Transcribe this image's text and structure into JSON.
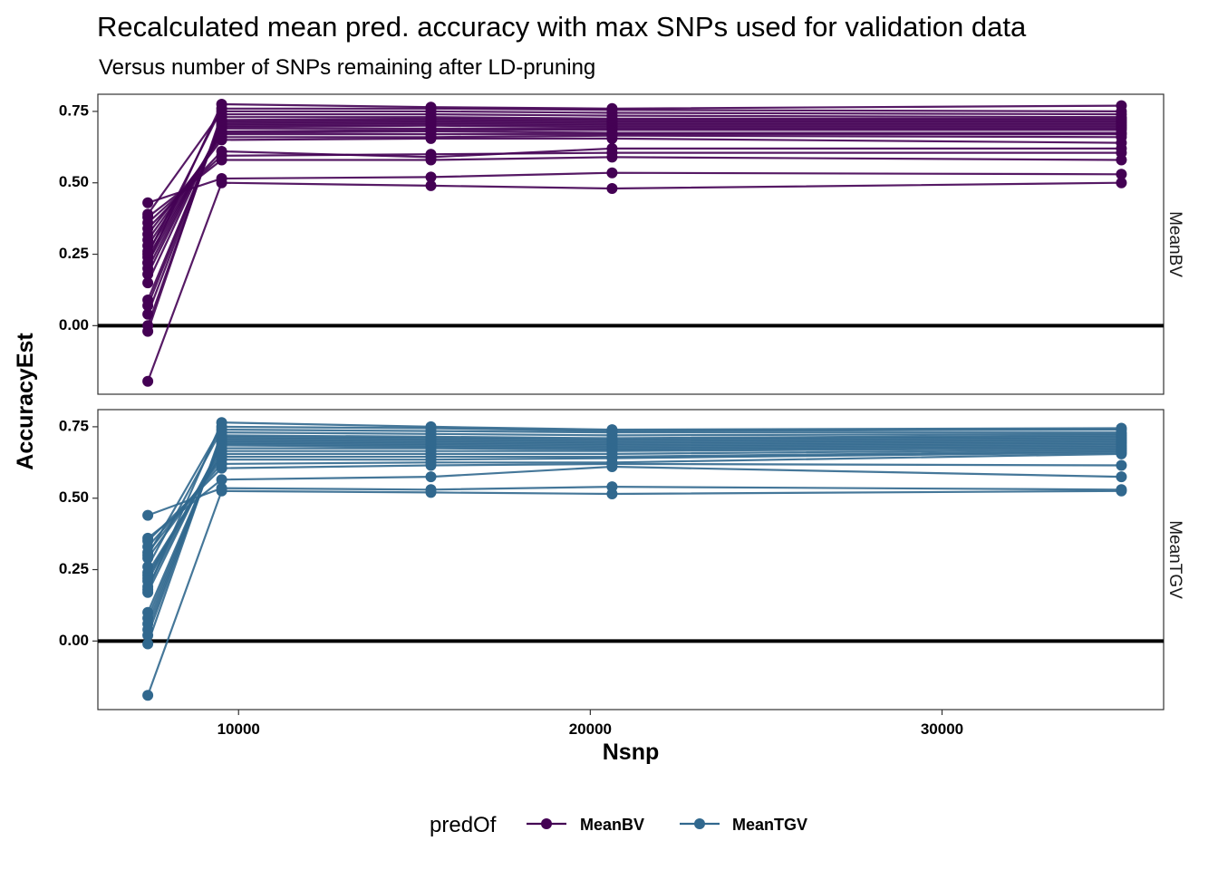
{
  "chart_data": {
    "type": "line",
    "title": "Recalculated mean pred. accuracy with max SNPs used for validation data",
    "subtitle": "Versus number of SNPs remaining after LD-pruning",
    "xlabel": "Nsnp",
    "ylabel": "AccuracyEst",
    "xlim": [
      6000,
      36300
    ],
    "ylim": [
      -0.24,
      0.81
    ],
    "x_ticks": [
      10000,
      20000,
      30000
    ],
    "x_tick_labels": [
      "10000",
      "20000",
      "30000"
    ],
    "y_ticks": [
      0,
      0.25,
      0.5,
      0.75
    ],
    "y_tick_labels": [
      "0.00",
      "0.25",
      "0.50",
      "0.75"
    ],
    "hline": 0,
    "grid": false,
    "legend_position": "bottom",
    "legend_title": "predOf",
    "x": [
      7420,
      9520,
      15470,
      20620,
      35100
    ],
    "facets": [
      {
        "name": "MeanBV",
        "color": "#440154",
        "series": [
          {
            "values": [
              -0.195,
              0.5,
              0.49,
              0.48,
              0.5
            ]
          },
          {
            "values": [
              0.43,
              0.515,
              0.52,
              0.535,
              0.53
            ]
          },
          {
            "values": [
              0.38,
              0.58,
              0.58,
              0.59,
              0.58
            ]
          },
          {
            "values": [
              0.36,
              0.595,
              0.6,
              0.605,
              0.605
            ]
          },
          {
            "values": [
              0.34,
              0.61,
              0.59,
              0.62,
              0.62
            ]
          },
          {
            "values": [
              0.32,
              0.65,
              0.655,
              0.655,
              0.64
            ]
          },
          {
            "values": [
              0.3,
              0.66,
              0.66,
              0.665,
              0.66
            ]
          },
          {
            "values": [
              0.28,
              0.67,
              0.67,
              0.67,
              0.67
            ]
          },
          {
            "values": [
              0.26,
              0.675,
              0.68,
              0.675,
              0.675
            ]
          },
          {
            "values": [
              0.24,
              0.68,
              0.685,
              0.685,
              0.685
            ]
          },
          {
            "values": [
              0.22,
              0.69,
              0.69,
              0.69,
              0.69
            ]
          },
          {
            "values": [
              0.2,
              0.695,
              0.7,
              0.695,
              0.695
            ]
          },
          {
            "values": [
              0.18,
              0.7,
              0.705,
              0.7,
              0.7
            ]
          },
          {
            "values": [
              0.15,
              0.705,
              0.71,
              0.705,
              0.705
            ]
          },
          {
            "values": [
              0.09,
              0.71,
              0.715,
              0.71,
              0.71
            ]
          },
          {
            "values": [
              0.07,
              0.715,
              0.72,
              0.715,
              0.715
            ]
          },
          {
            "values": [
              0.04,
              0.72,
              0.725,
              0.72,
              0.72
            ]
          },
          {
            "values": [
              0.0,
              0.73,
              0.73,
              0.725,
              0.725
            ]
          },
          {
            "values": [
              -0.02,
              0.74,
              0.74,
              0.735,
              0.73
            ]
          },
          {
            "values": [
              0.39,
              0.75,
              0.75,
              0.745,
              0.74
            ]
          },
          {
            "values": [
              0.25,
              0.76,
              0.76,
              0.755,
              0.75
            ]
          },
          {
            "values": [
              0.22,
              0.775,
              0.765,
              0.76,
              0.77
            ]
          }
        ]
      },
      {
        "name": "MeanTGV",
        "color": "#31688E",
        "series": [
          {
            "values": [
              -0.19,
              0.525,
              0.52,
              0.515,
              0.525
            ]
          },
          {
            "values": [
              0.44,
              0.535,
              0.53,
              0.54,
              0.53
            ]
          },
          {
            "values": [
              0.36,
              0.565,
              0.575,
              0.61,
              0.575
            ]
          },
          {
            "values": [
              0.35,
              0.605,
              0.615,
              0.62,
              0.615
            ]
          },
          {
            "values": [
              0.33,
              0.62,
              0.625,
              0.625,
              0.655
            ]
          },
          {
            "values": [
              0.31,
              0.635,
              0.635,
              0.64,
              0.66
            ]
          },
          {
            "values": [
              0.29,
              0.645,
              0.645,
              0.645,
              0.665
            ]
          },
          {
            "values": [
              0.24,
              0.655,
              0.655,
              0.655,
              0.67
            ]
          },
          {
            "values": [
              0.23,
              0.665,
              0.665,
              0.665,
              0.675
            ]
          },
          {
            "values": [
              0.22,
              0.675,
              0.675,
              0.67,
              0.68
            ]
          },
          {
            "values": [
              0.21,
              0.685,
              0.68,
              0.675,
              0.685
            ]
          },
          {
            "values": [
              0.19,
              0.69,
              0.685,
              0.68,
              0.69
            ]
          },
          {
            "values": [
              0.17,
              0.695,
              0.69,
              0.685,
              0.695
            ]
          },
          {
            "values": [
              0.1,
              0.7,
              0.695,
              0.69,
              0.7
            ]
          },
          {
            "values": [
              0.08,
              0.705,
              0.7,
              0.695,
              0.705
            ]
          },
          {
            "values": [
              0.06,
              0.71,
              0.705,
              0.7,
              0.71
            ]
          },
          {
            "values": [
              0.04,
              0.715,
              0.71,
              0.705,
              0.715
            ]
          },
          {
            "values": [
              0.02,
              0.72,
              0.715,
              0.71,
              0.72
            ]
          },
          {
            "values": [
              -0.01,
              0.73,
              0.725,
              0.72,
              0.725
            ]
          },
          {
            "values": [
              0.26,
              0.74,
              0.735,
              0.73,
              0.73
            ]
          },
          {
            "values": [
              0.3,
              0.75,
              0.745,
              0.735,
              0.74
            ]
          },
          {
            "values": [
              0.18,
              0.765,
              0.75,
              0.74,
              0.745
            ]
          }
        ]
      }
    ],
    "legend": [
      {
        "label": "MeanBV",
        "color": "#440154"
      },
      {
        "label": "MeanTGV",
        "color": "#31688E"
      }
    ]
  }
}
